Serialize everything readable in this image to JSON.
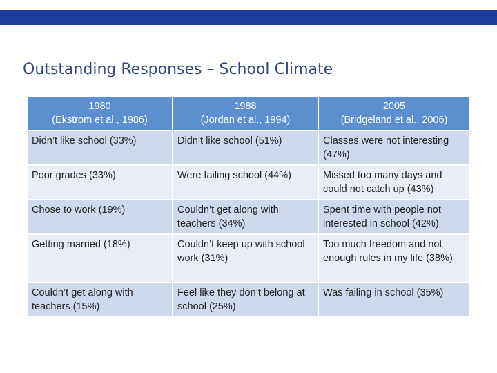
{
  "slide": {
    "title": "Outstanding Responses – School Climate",
    "accent_color": "#1f3d9c",
    "header_color": "#5b8fd0"
  },
  "table": {
    "headers": [
      {
        "year": "1980",
        "source": "(Ekstrom et al., 1986)"
      },
      {
        "year": "1988",
        "source": "(Jordan et al., 1994)"
      },
      {
        "year": "2005",
        "source": "(Bridgeland et al., 2006)"
      }
    ],
    "rows": [
      [
        "Didn’t like school (33%)",
        "Didn’t like school (51%)",
        "Classes were not interesting (47%)"
      ],
      [
        "Poor grades (33%)",
        "Were failing school (44%)",
        "Missed too many days and could not catch up (43%)"
      ],
      [
        "Chose to work (19%)",
        "Couldn’t get along with teachers (34%)",
        "Spent time with people not interested in school (42%)"
      ],
      [
        "Getting married (18%)",
        "Couldn’t keep up with school work (31%)",
        "Too much freedom and not enough rules in my life (38%)"
      ],
      [
        "Couldn’t get along with teachers (15%)",
        "Feel like they don’t belong at school (25%)",
        "Was failing in school (35%)"
      ]
    ]
  }
}
